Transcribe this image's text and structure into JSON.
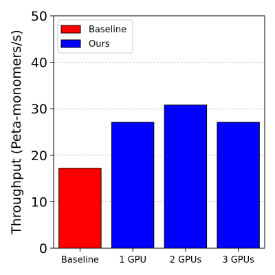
{
  "chart_data": {
    "type": "bar",
    "categories": [
      "Baseline",
      "1 GPU",
      "2 GPUs",
      "3 GPUs"
    ],
    "values": [
      17.2,
      27.1,
      30.8,
      27.1
    ],
    "bar_series": [
      "Baseline",
      "Ours",
      "Ours",
      "Ours"
    ],
    "title": "",
    "xlabel": "",
    "ylabel": "Throughput (Peta-monomers/s)",
    "ylim": [
      0,
      50
    ],
    "yticks": [
      0,
      10,
      20,
      30,
      40,
      50
    ],
    "grid": "y-dashed",
    "legend": {
      "placement": "top-left",
      "entries": [
        {
          "name": "Baseline",
          "color": "#ff0000"
        },
        {
          "name": "Ours",
          "color": "#0000ff"
        }
      ]
    },
    "colors": {
      "Baseline": "#ff0000",
      "Ours": "#0000ff",
      "edge": "#000000",
      "grid": "#b0b0b0"
    }
  }
}
